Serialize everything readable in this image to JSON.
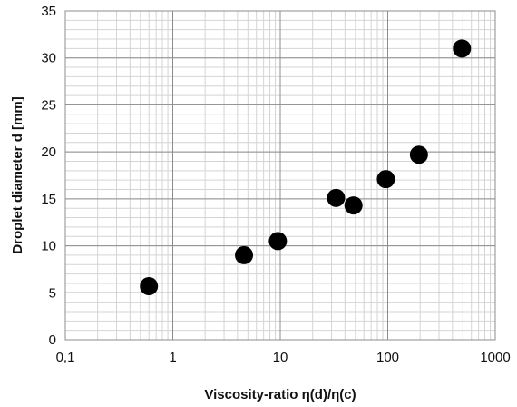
{
  "chart_data": {
    "type": "scatter",
    "title": "",
    "xlabel": "Viscosity-ratio η(d)/η(c)",
    "ylabel": "Droplet diameter d [mm]",
    "x_scale": "log",
    "xlim": [
      0.1,
      1000
    ],
    "ylim": [
      0,
      35
    ],
    "x_ticks": [
      0.1,
      1,
      10,
      100,
      1000
    ],
    "x_tick_labels": [
      "0,1",
      "1",
      "10",
      "100",
      "1000"
    ],
    "y_ticks": [
      0,
      5,
      10,
      15,
      20,
      25,
      30,
      35
    ],
    "y_tick_labels": [
      "0",
      "5",
      "10",
      "15",
      "20",
      "25",
      "30",
      "35"
    ],
    "grid": true,
    "legend": "none",
    "marker_color": "#000000",
    "series": [
      {
        "x": [
          0.6,
          4.6,
          9.5,
          33,
          48,
          96,
          195,
          490
        ],
        "y": [
          5.7,
          9.0,
          10.5,
          15.1,
          14.3,
          17.1,
          19.7,
          31.0
        ]
      }
    ]
  }
}
